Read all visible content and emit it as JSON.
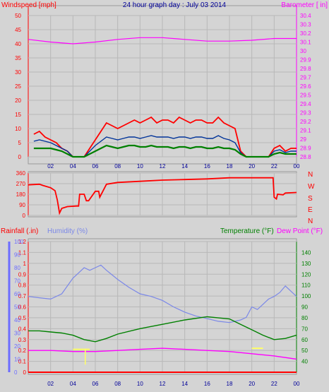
{
  "header": {
    "left": "Windspeed [mph]",
    "center": "24 hour graph day : July 03 2014",
    "right": "Barometer [ in]"
  },
  "colors": {
    "bg": "#d4d4d4",
    "axis_red": "#ff0000",
    "wind": "#ff0000",
    "gust": "#003399",
    "avg": "#008000",
    "baro": "#ff00ff",
    "dir": "#ff0000",
    "humidity": "#7b88e8",
    "temp": "#008000",
    "dew": "#ff00ff",
    "rain_axis": "#6d6dff",
    "yellow": "#ffff66",
    "blue_title": "#000099"
  },
  "compass": [
    "N",
    "W",
    "S",
    "E",
    "N"
  ],
  "panel3": {
    "rain_label": "Rainfall (.in)",
    "humidity_label": "Humidity (%)",
    "temp_label": "Temperature (°F)",
    "dew_label": "Dew Point (°F)"
  },
  "chart_data": [
    {
      "type": "line",
      "title": "24 hour graph day : July 03 2014",
      "ylabel": "Windspeed [mph]",
      "y2label": "Barometer [ in]",
      "x_ticks": [
        "02",
        "04",
        "06",
        "08",
        "10",
        "12",
        "14",
        "16",
        "18",
        "20",
        "22",
        "00"
      ],
      "ylim": [
        0,
        50
      ],
      "y_ticks": [
        0,
        5,
        10,
        15,
        20,
        25,
        30,
        35,
        40,
        45,
        50
      ],
      "y2lim": [
        28.8,
        30.4
      ],
      "y2_ticks": [
        "28.8",
        "28.9",
        "29",
        "29.1",
        "29.2",
        "29.3",
        "29.4",
        "29.5",
        "29.6",
        "29.7",
        "29.8",
        "29.9",
        "30",
        "30.1",
        "30.2",
        "30.3",
        "30.4"
      ],
      "series": [
        {
          "x": [
            0.5,
            1,
            1.5,
            2,
            2.5,
            3,
            3.5,
            4,
            4.5,
            5,
            5.5,
            6,
            6.5,
            7,
            7.5,
            8,
            8.5,
            9,
            9.5,
            10,
            10.5,
            11,
            11.5,
            12,
            12.5,
            13,
            13.5,
            14,
            14.5,
            15,
            15.5,
            16,
            16.5,
            17,
            17.5,
            18,
            18.5,
            19,
            19.5,
            20,
            20.5,
            21,
            21.5,
            22,
            22.5,
            23,
            23.5,
            24
          ],
          "values": [
            8,
            9,
            7,
            6,
            5,
            3,
            2,
            0,
            0,
            0,
            3,
            6,
            9,
            12,
            11,
            10,
            11,
            12,
            13,
            12,
            13,
            14,
            12,
            13,
            13,
            12,
            14,
            13,
            12,
            13,
            13,
            12,
            12,
            14,
            12,
            11,
            10,
            2,
            0,
            0,
            0,
            0,
            0,
            3,
            4,
            2,
            3,
            3
          ]
        },
        {
          "x": [
            0.5,
            1,
            1.5,
            2,
            2.5,
            3,
            3.5,
            4,
            4.5,
            5,
            5.5,
            6,
            6.5,
            7,
            7.5,
            8,
            8.5,
            9,
            9.5,
            10,
            10.5,
            11,
            11.5,
            12,
            12.5,
            13,
            13.5,
            14,
            14.5,
            15,
            15.5,
            16,
            16.5,
            17,
            17.5,
            18,
            18.5,
            19,
            19.5,
            20,
            20.5,
            21,
            21.5,
            22,
            22.5,
            23,
            23.5,
            24
          ],
          "values": [
            5.5,
            6,
            5.5,
            5,
            4,
            3,
            2,
            0,
            0,
            0,
            2,
            4,
            5.5,
            7,
            6.5,
            6,
            6.5,
            7,
            7,
            6.5,
            7,
            7.5,
            7,
            7,
            7,
            6.5,
            7,
            7,
            6.5,
            7,
            7,
            6.5,
            6.5,
            7.5,
            6.5,
            6,
            5,
            1.5,
            0,
            0,
            0,
            0,
            0,
            2,
            2.5,
            1.5,
            2,
            2
          ]
        },
        {
          "x": [
            0.5,
            1,
            1.5,
            2,
            2.5,
            3,
            3.5,
            4,
            4.5,
            5,
            5.5,
            6,
            6.5,
            7,
            7.5,
            8,
            8.5,
            9,
            9.5,
            10,
            10.5,
            11,
            11.5,
            12,
            12.5,
            13,
            13.5,
            14,
            14.5,
            15,
            15.5,
            16,
            16.5,
            17,
            17.5,
            18,
            18.5,
            19,
            19.5,
            20,
            20.5,
            21,
            21.5,
            22,
            22.5,
            23,
            23.5,
            24
          ],
          "values": [
            3,
            3,
            3,
            3,
            2.5,
            2,
            1,
            0,
            0,
            0,
            1,
            2,
            3,
            4,
            3.5,
            3,
            3.5,
            4,
            4,
            3.5,
            3.5,
            4,
            3.5,
            3.5,
            3.5,
            3,
            3.5,
            3.5,
            3,
            3.5,
            3.5,
            3,
            3,
            3.5,
            3,
            3,
            2.5,
            1,
            0,
            0,
            0,
            0,
            0,
            1,
            1.5,
            1,
            1,
            1
          ]
        },
        {
          "x": [
            0,
            2,
            4,
            6,
            8,
            10,
            12,
            14,
            16,
            18,
            20,
            22,
            24
          ],
          "values": [
            30.13,
            30.1,
            30.08,
            30.1,
            30.13,
            30.15,
            30.15,
            30.13,
            30.11,
            30.11,
            30.12,
            30.14,
            30.14
          ]
        }
      ]
    },
    {
      "type": "line",
      "ylim": [
        0,
        360
      ],
      "y_ticks": [
        0,
        90,
        180,
        270,
        360
      ],
      "y_tick_labels": [
        "0",
        "90",
        "180",
        "270",
        "360"
      ],
      "x": [
        0,
        1,
        1.3,
        2,
        2.4,
        2.6,
        2.8,
        3,
        3.5,
        4.3,
        4.5,
        4.6,
        5,
        5.2,
        5.4,
        6,
        6.3,
        6.4,
        7,
        8,
        10,
        12,
        14,
        16,
        18,
        19,
        20,
        21,
        21.9,
        22,
        22.2,
        22.3,
        22.8,
        23,
        24
      ],
      "values": [
        260,
        265,
        255,
        235,
        210,
        130,
        20,
        60,
        75,
        80,
        80,
        180,
        180,
        125,
        125,
        205,
        205,
        155,
        265,
        280,
        290,
        300,
        305,
        310,
        320,
        320,
        320,
        320,
        320,
        155,
        140,
        180,
        175,
        190,
        195
      ]
    },
    {
      "type": "line",
      "rain_ylim": [
        0,
        1.2
      ],
      "rain_ticks": [
        "0",
        "0.1",
        "0.2",
        "0.3",
        "0.4",
        "0.5",
        "0.6",
        "0.7",
        "0.8",
        "0.9",
        "1",
        "1.1",
        "1.2"
      ],
      "humidity_ylim": [
        0,
        100
      ],
      "humidity_ticks": [
        "0",
        "10",
        "20",
        "30",
        "40",
        "50",
        "60",
        "70",
        "80",
        "90",
        "100"
      ],
      "temp_ylim": [
        30,
        150
      ],
      "temp_ticks": [
        "40",
        "50",
        "60",
        "70",
        "80",
        "90",
        "100",
        "110",
        "120",
        "130",
        "140"
      ],
      "series": [
        {
          "x": [
            0,
            1,
            2,
            3,
            4,
            4.5,
            5,
            5.5,
            6,
            6.5,
            7,
            8,
            9,
            10,
            11,
            12,
            13,
            14,
            15,
            16,
            17,
            18,
            19,
            19.5,
            20,
            20.5,
            21,
            21.5,
            22,
            22.5,
            23,
            23.5,
            24
          ],
          "values": [
            58,
            57,
            56,
            60,
            72,
            76,
            80,
            78,
            80,
            82,
            78,
            71,
            65,
            60,
            58,
            55,
            50,
            46,
            43,
            41,
            39,
            38,
            40,
            42,
            50,
            48,
            52,
            56,
            58,
            61,
            66,
            62,
            58
          ]
        },
        {
          "x": [
            0,
            1,
            2,
            3,
            4,
            5,
            6,
            7,
            8,
            10,
            12,
            14,
            16,
            18,
            19,
            20,
            21,
            22,
            23,
            24
          ],
          "values": [
            68,
            68,
            67,
            66,
            64,
            60,
            58,
            61,
            65,
            70,
            74,
            78,
            81,
            79,
            74,
            69,
            64,
            60,
            61,
            64
          ]
        },
        {
          "x": [
            0,
            2,
            4,
            6,
            8,
            10,
            12,
            14,
            16,
            18,
            20,
            22,
            24
          ],
          "values": [
            50,
            50,
            49,
            49,
            50,
            51,
            52,
            51,
            50,
            49,
            47,
            45,
            42
          ]
        }
      ]
    }
  ]
}
